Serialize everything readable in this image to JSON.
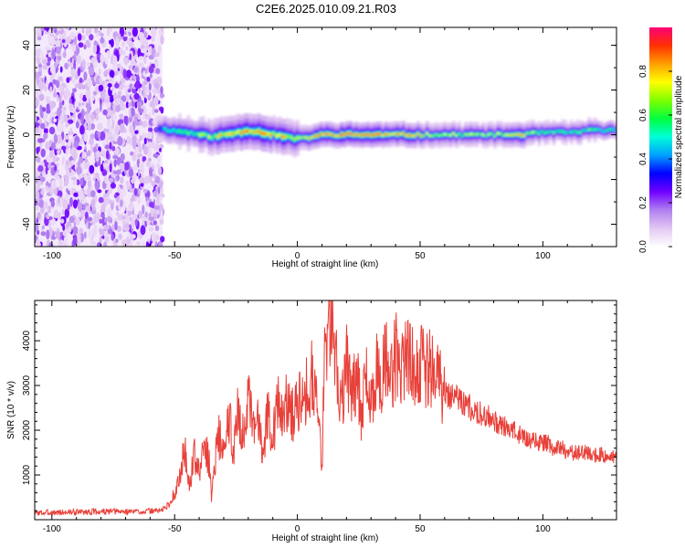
{
  "title": "C2E6.2025.010.09.21.R03",
  "chart_data": [
    {
      "type": "heatmap",
      "xlabel": "Height of straight line (km)",
      "ylabel": "Frequency (Hz)",
      "xlim": [
        -107,
        130
      ],
      "ylim": [
        -50,
        48
      ],
      "x_ticks": [
        -100,
        -50,
        0,
        50,
        100
      ],
      "y_ticks": [
        -40,
        -20,
        0,
        20,
        40
      ],
      "noise_region_x": [
        -107,
        -55
      ],
      "signal_band": {
        "x": [
          -57,
          -52,
          -45,
          -40,
          -35,
          -30,
          -25,
          -20,
          -15,
          -10,
          -5,
          0,
          5,
          10,
          20,
          40,
          60,
          80,
          90,
          100,
          110,
          120,
          130
        ],
        "center_frequency": [
          3,
          2,
          1,
          0,
          -1,
          0,
          1,
          2,
          1,
          0,
          -1,
          -2,
          -1,
          0,
          0,
          0,
          0,
          0,
          0,
          1,
          1,
          2,
          2
        ],
        "peak_amplitude": [
          0.4,
          0.55,
          0.6,
          0.65,
          0.7,
          0.75,
          0.85,
          0.8,
          0.9,
          0.8,
          0.75,
          0.7,
          0.8,
          0.9,
          0.95,
          0.85,
          0.7,
          0.65,
          0.8,
          0.6,
          0.55,
          0.6,
          0.5
        ]
      },
      "colorbar": {
        "label": "Normalized spectral amplitude",
        "range": [
          0,
          1
        ],
        "ticks": [
          "0.0",
          "0.2",
          "0.4",
          "0.6",
          "0.8"
        ],
        "colors": [
          "#ffffff",
          "#e2c8f2",
          "#b07ff0",
          "#7000ff",
          "#0000ff",
          "#00a0ff",
          "#00ffd8",
          "#00ff40",
          "#7fff00",
          "#ffff00",
          "#ffa000",
          "#ff3000",
          "#ff0078"
        ]
      }
    },
    {
      "type": "line",
      "xlabel": "Height of straight line (km)",
      "ylabel": "SNR (10 * v/v)",
      "xlim": [
        -107,
        130
      ],
      "ylim": [
        0,
        4900
      ],
      "x_ticks": [
        -100,
        -50,
        0,
        50,
        100
      ],
      "y_ticks": [
        1000,
        2000,
        3000,
        4000
      ],
      "line_color": "#e8413a",
      "series": [
        {
          "x": [
            -107,
            -100,
            -90,
            -80,
            -70,
            -60,
            -55,
            -52,
            -50,
            -48,
            -46,
            -45,
            -44,
            -42,
            -40,
            -38,
            -36,
            -35,
            -34,
            -32,
            -30,
            -28,
            -26,
            -24,
            -22,
            -20,
            -18,
            -16,
            -14,
            -12,
            -10,
            -8,
            -6,
            -4,
            -2,
            0,
            2,
            4,
            6,
            8,
            10,
            11,
            12,
            13,
            14,
            16,
            18,
            20,
            22,
            24,
            26,
            28,
            30,
            32,
            34,
            36,
            38,
            40,
            42,
            44,
            46,
            48,
            50,
            52,
            54,
            56,
            58,
            60,
            62,
            64,
            66,
            68,
            70,
            72,
            74,
            76,
            78,
            80,
            82,
            84,
            86,
            88,
            90,
            92,
            94,
            96,
            98,
            100,
            102,
            104,
            106,
            108,
            110,
            112,
            114,
            116,
            118,
            120,
            122,
            124,
            126,
            128,
            130
          ],
          "y": [
            150,
            160,
            170,
            180,
            180,
            190,
            220,
            350,
            600,
            900,
            1600,
            1200,
            700,
            1500,
            1000,
            1700,
            1300,
            500,
            1200,
            1900,
            1400,
            2300,
            1600,
            2500,
            1800,
            2700,
            1900,
            2300,
            1600,
            2400,
            1900,
            2600,
            2200,
            2700,
            2300,
            2600,
            3100,
            2800,
            3400,
            2600,
            1100,
            3600,
            4300,
            4800,
            4400,
            3400,
            2700,
            3500,
            2700,
            3300,
            2400,
            3100,
            2600,
            3400,
            2900,
            3600,
            3100,
            3700,
            3400,
            3800,
            3600,
            3400,
            3500,
            3300,
            3400,
            3200,
            3000,
            2900,
            2800,
            2800,
            2700,
            2600,
            2500,
            2500,
            2400,
            2300,
            2300,
            2200,
            2100,
            2100,
            2000,
            2000,
            1900,
            1900,
            1800,
            1800,
            1700,
            1700,
            1700,
            1600,
            1600,
            1600,
            1500,
            1500,
            1500,
            1500,
            1500,
            1450,
            1450,
            1450,
            1400,
            1400,
            1400
          ]
        }
      ]
    }
  ]
}
